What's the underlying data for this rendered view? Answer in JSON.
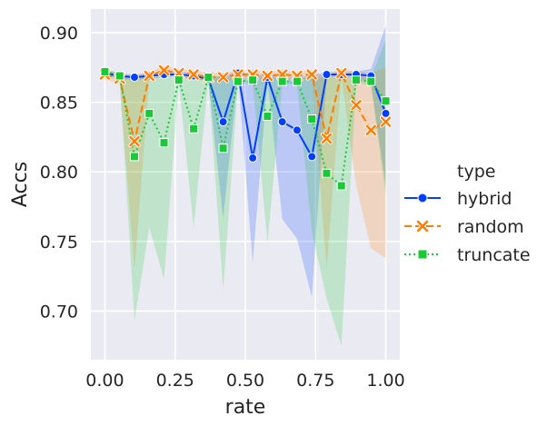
{
  "chart_data": {
    "type": "line",
    "title": "",
    "xlabel": "rate",
    "ylabel": "Accs",
    "xlim": [
      -0.05,
      1.05
    ],
    "ylim": [
      0.665,
      0.917
    ],
    "xticks": [
      0.0,
      0.25,
      0.5,
      0.75,
      1.0
    ],
    "xtick_labels": [
      "0.00",
      "0.25",
      "0.50",
      "0.75",
      "1.00"
    ],
    "yticks": [
      0.7,
      0.75,
      0.8,
      0.85,
      0.9
    ],
    "ytick_labels": [
      "0.70",
      "0.75",
      "0.80",
      "0.85",
      "0.90"
    ],
    "grid": true,
    "legend_title": "type",
    "legend_position": "right",
    "x": [
      0.0,
      0.0526,
      0.1053,
      0.1579,
      0.2105,
      0.2632,
      0.3158,
      0.3684,
      0.4211,
      0.4737,
      0.5263,
      0.5789,
      0.6316,
      0.6842,
      0.7368,
      0.7895,
      0.8421,
      0.8947,
      0.9474,
      1.0
    ],
    "series": [
      {
        "name": "hybrid",
        "color": "#023eff",
        "linestyle": "solid",
        "marker": "circle",
        "values": [
          0.871,
          0.869,
          0.868,
          0.869,
          0.87,
          0.87,
          0.869,
          0.867,
          0.836,
          0.871,
          0.81,
          0.868,
          0.836,
          0.83,
          0.811,
          0.87,
          0.87,
          0.87,
          0.869,
          0.842
        ],
        "lower": [
          0.869,
          0.867,
          0.866,
          0.867,
          0.868,
          0.868,
          0.867,
          0.865,
          0.767,
          0.869,
          0.735,
          0.866,
          0.766,
          0.752,
          0.71,
          0.868,
          0.868,
          0.868,
          0.864,
          0.79
        ],
        "upper": [
          0.873,
          0.871,
          0.87,
          0.871,
          0.872,
          0.872,
          0.871,
          0.869,
          0.868,
          0.873,
          0.869,
          0.87,
          0.869,
          0.868,
          0.869,
          0.872,
          0.872,
          0.872,
          0.874,
          0.905
        ]
      },
      {
        "name": "random",
        "color": "#ff7c00",
        "linestyle": "dashed",
        "marker": "x",
        "values": [
          0.87,
          0.867,
          0.822,
          0.869,
          0.873,
          0.871,
          0.87,
          0.868,
          0.868,
          0.87,
          0.87,
          0.869,
          0.87,
          0.869,
          0.87,
          0.824,
          0.871,
          0.848,
          0.83,
          0.836
        ],
        "lower": [
          0.866,
          0.864,
          0.73,
          0.866,
          0.87,
          0.868,
          0.867,
          0.865,
          0.865,
          0.867,
          0.867,
          0.866,
          0.867,
          0.866,
          0.867,
          0.73,
          0.868,
          0.79,
          0.745,
          0.738
        ],
        "upper": [
          0.874,
          0.87,
          0.869,
          0.872,
          0.876,
          0.874,
          0.873,
          0.871,
          0.871,
          0.873,
          0.873,
          0.872,
          0.873,
          0.872,
          0.873,
          0.868,
          0.874,
          0.872,
          0.871,
          0.875
        ]
      },
      {
        "name": "truncate",
        "color": "#1ac938",
        "linestyle": "dotted",
        "marker": "square",
        "values": [
          0.872,
          0.869,
          0.811,
          0.842,
          0.821,
          0.866,
          0.831,
          0.868,
          0.817,
          0.865,
          0.866,
          0.84,
          0.865,
          0.865,
          0.838,
          0.799,
          0.79,
          0.866,
          0.865,
          0.851
        ],
        "lower": [
          0.87,
          0.867,
          0.693,
          0.76,
          0.723,
          0.864,
          0.76,
          0.866,
          0.715,
          0.863,
          0.864,
          0.749,
          0.863,
          0.863,
          0.757,
          0.709,
          0.675,
          0.864,
          0.862,
          0.783
        ],
        "upper": [
          0.874,
          0.871,
          0.868,
          0.868,
          0.868,
          0.868,
          0.868,
          0.87,
          0.868,
          0.867,
          0.868,
          0.868,
          0.867,
          0.867,
          0.868,
          0.868,
          0.868,
          0.868,
          0.868,
          0.895
        ]
      }
    ]
  }
}
